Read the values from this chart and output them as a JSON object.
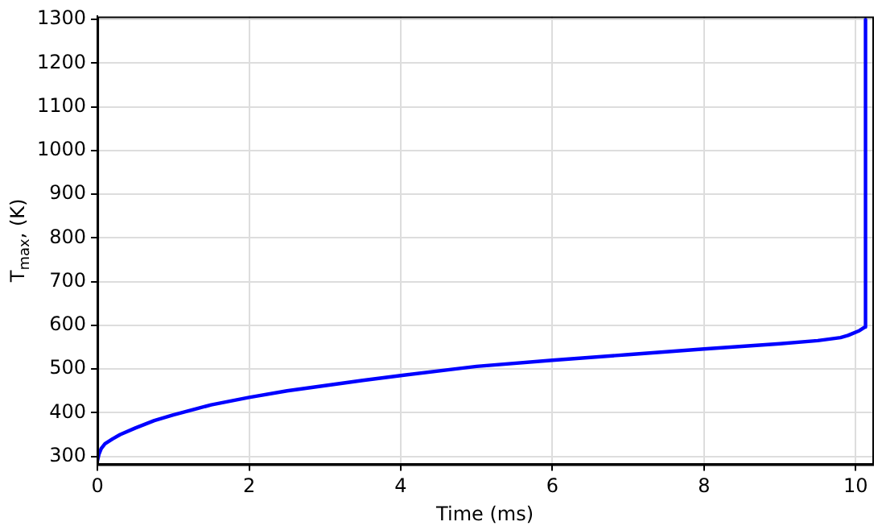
{
  "chart_data": {
    "type": "line",
    "xlabel": "Time (ms)",
    "ylabel": "T$_{max}$, (K)",
    "xlim": [
      0,
      10.22
    ],
    "xticks": [
      0,
      2,
      4,
      6,
      8,
      10
    ],
    "ylim": [
      282,
      1307
    ],
    "yticks": [
      300,
      400,
      500,
      600,
      700,
      800,
      900,
      1000,
      1100,
      1200,
      1300
    ],
    "grid": true,
    "legend": false,
    "marker": "none",
    "line_style": "solid",
    "series": [
      {
        "color": "#0000ff",
        "x": [
          0,
          0.02,
          0.05,
          0.1,
          0.2,
          0.3,
          0.5,
          0.75,
          1,
          1.5,
          2,
          2.5,
          3,
          3.5,
          4,
          5,
          6,
          7,
          8,
          9,
          9.5,
          9.8,
          9.9,
          10.05,
          10.12,
          10.13
        ],
        "values": [
          290,
          305,
          318,
          329,
          340,
          350,
          365,
          382,
          395,
          418,
          435,
          450,
          462,
          474,
          485,
          506,
          520,
          533,
          546,
          558,
          565,
          572,
          577,
          588,
          596,
          1300
        ]
      }
    ]
  }
}
